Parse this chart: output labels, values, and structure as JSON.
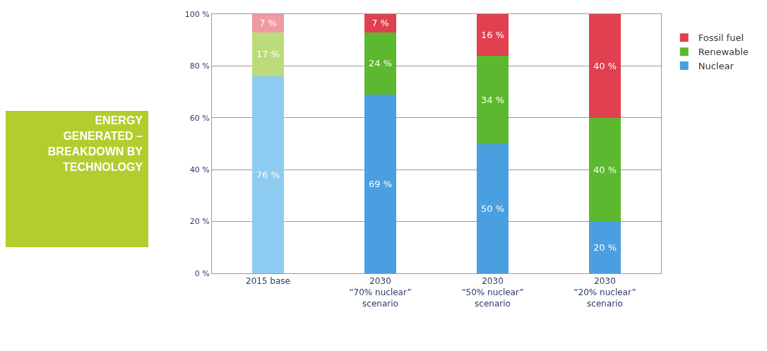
{
  "chart_data": {
    "type": "bar",
    "title": "ENERGY GENERATED – BREAKDOWN BY TECHNOLOGY",
    "stacked": true,
    "categories": [
      "2015 base",
      "2030\n“70% nuclear”\nscenario",
      "2030\n“50% nuclear”\nscenario",
      "2030\n“20% nuclear”\nscenario"
    ],
    "series": [
      {
        "name": "Nuclear",
        "color": "#4a9fe0",
        "colors": [
          "#8ecbf0",
          "#4a9fe0",
          "#4a9fe0",
          "#4a9fe0"
        ],
        "values": [
          76,
          69,
          50,
          20
        ],
        "value_labels": [
          "76 %",
          "69 %",
          "50 %",
          "20 %"
        ]
      },
      {
        "name": "Renewable",
        "color": "#5cb82e",
        "colors": [
          "#bcdc7c",
          "#5cb82e",
          "#5cb82e",
          "#5cb82e"
        ],
        "values": [
          17,
          24,
          34,
          40
        ],
        "value_labels": [
          "17 %",
          "24 %",
          "34 %",
          "40 %"
        ]
      },
      {
        "name": "Fossil fuel",
        "color": "#e0404f",
        "colors": [
          "#f09aa4",
          "#e0404f",
          "#e0404f",
          "#e0404f"
        ],
        "values": [
          7,
          7,
          16,
          40
        ],
        "value_labels": [
          "7 %",
          "7 %",
          "16 %",
          "40 %"
        ]
      }
    ],
    "ylim": [
      0,
      100
    ],
    "yticks": [
      {
        "value": 0,
        "label": "0 %"
      },
      {
        "value": 20,
        "label": "20 %"
      },
      {
        "value": 40,
        "label": "40 %"
      },
      {
        "value": 60,
        "label": "60 %"
      },
      {
        "value": 80,
        "label": "80 %"
      },
      {
        "value": 100,
        "label": "100 %"
      }
    ],
    "grid": true,
    "legend": "top right"
  }
}
